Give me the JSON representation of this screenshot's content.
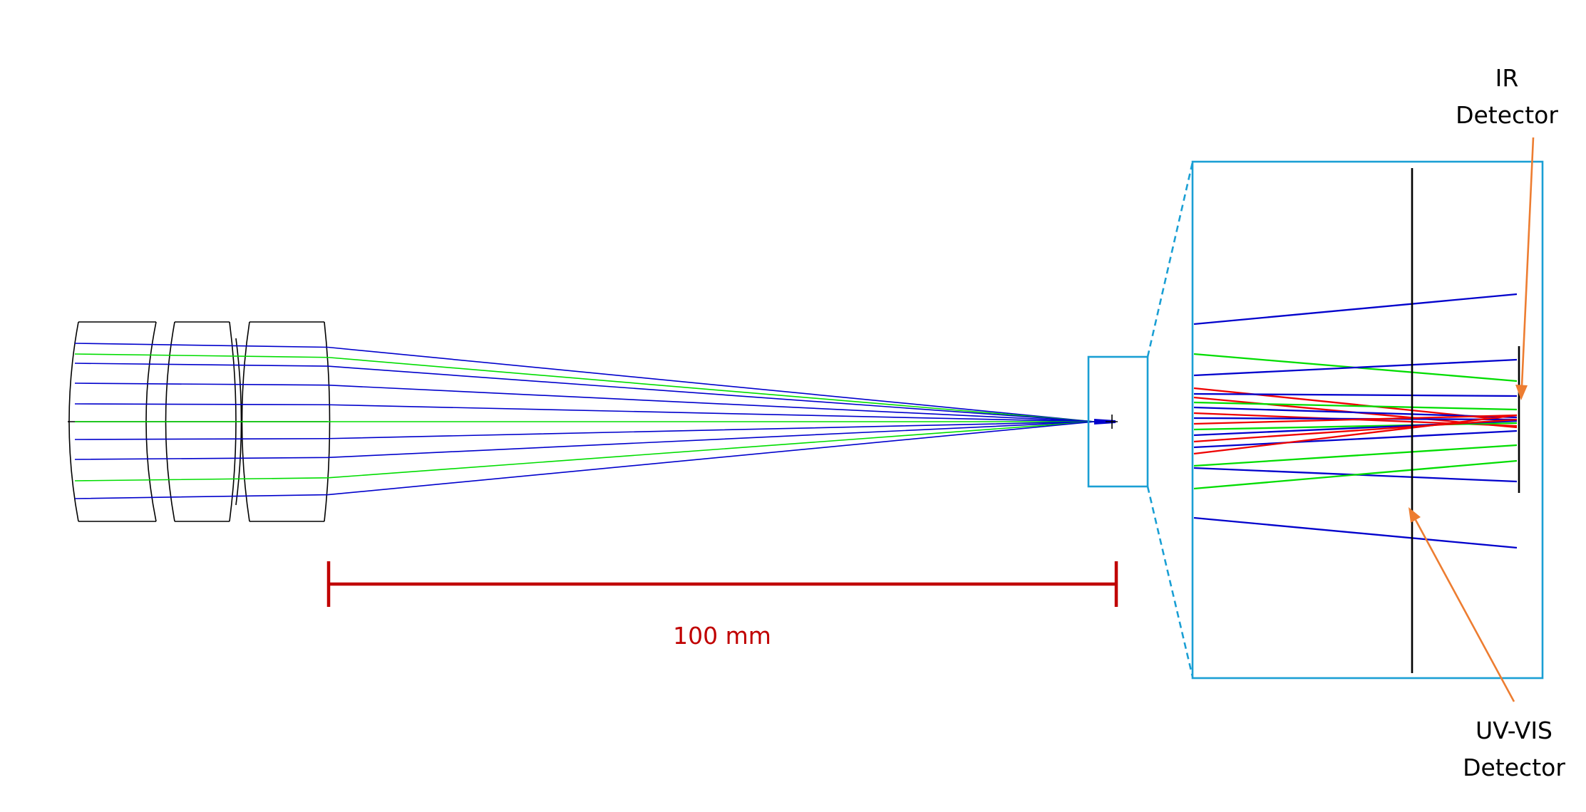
{
  "scale_bar": {
    "label": "100 mm",
    "color": "#c00000"
  },
  "labels": {
    "ir_detector_line1": "IR",
    "ir_detector_line2": "Detector",
    "uvvis_detector_line1": "UV-VIS",
    "uvvis_detector_line2": "Detector"
  },
  "colors": {
    "ray_blue": "#0000cc",
    "ray_green": "#00dd00",
    "ray_red": "#ee0000",
    "zoom_box": "#1a9fd4",
    "pointer": "#ed7d31",
    "outline": "#000000"
  }
}
